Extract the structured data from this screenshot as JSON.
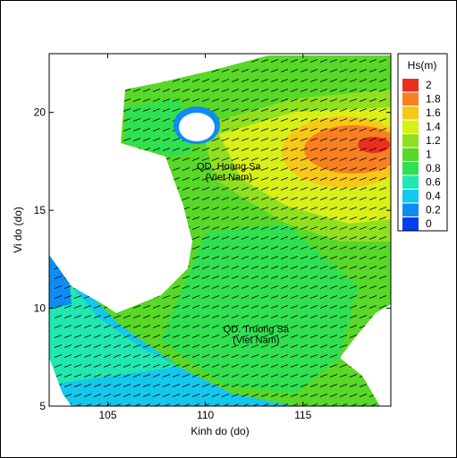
{
  "chart_data": {
    "type": "contour-map",
    "xlabel": "Kinh do (do)",
    "ylabel": "Vi do (do)",
    "xlim": [
      102,
      119.5
    ],
    "ylim": [
      5,
      23
    ],
    "xticks": [
      105,
      110,
      115
    ],
    "yticks": [
      5,
      10,
      15,
      20
    ],
    "annotations": [
      {
        "text": "QD. Hoang Sa",
        "sub": "(Viet Nam)",
        "x": 111.2,
        "y": 16.8
      },
      {
        "text": "QD. Truong Sa",
        "sub": "(Viet Nam)",
        "x": 112.6,
        "y": 8.5
      }
    ],
    "colorbar": {
      "title": "Hs(m)",
      "ticks": [
        2,
        1.8,
        1.6,
        1.4,
        1.2,
        1,
        0.8,
        0.6,
        0.4,
        0.2,
        0
      ],
      "colors": [
        "#e83020",
        "#f88020",
        "#f8c818",
        "#d8f018",
        "#90e020",
        "#58d828",
        "#30e050",
        "#20e8b0",
        "#14c8ec",
        "#0c8cf4",
        "#0040f0"
      ]
    }
  }
}
